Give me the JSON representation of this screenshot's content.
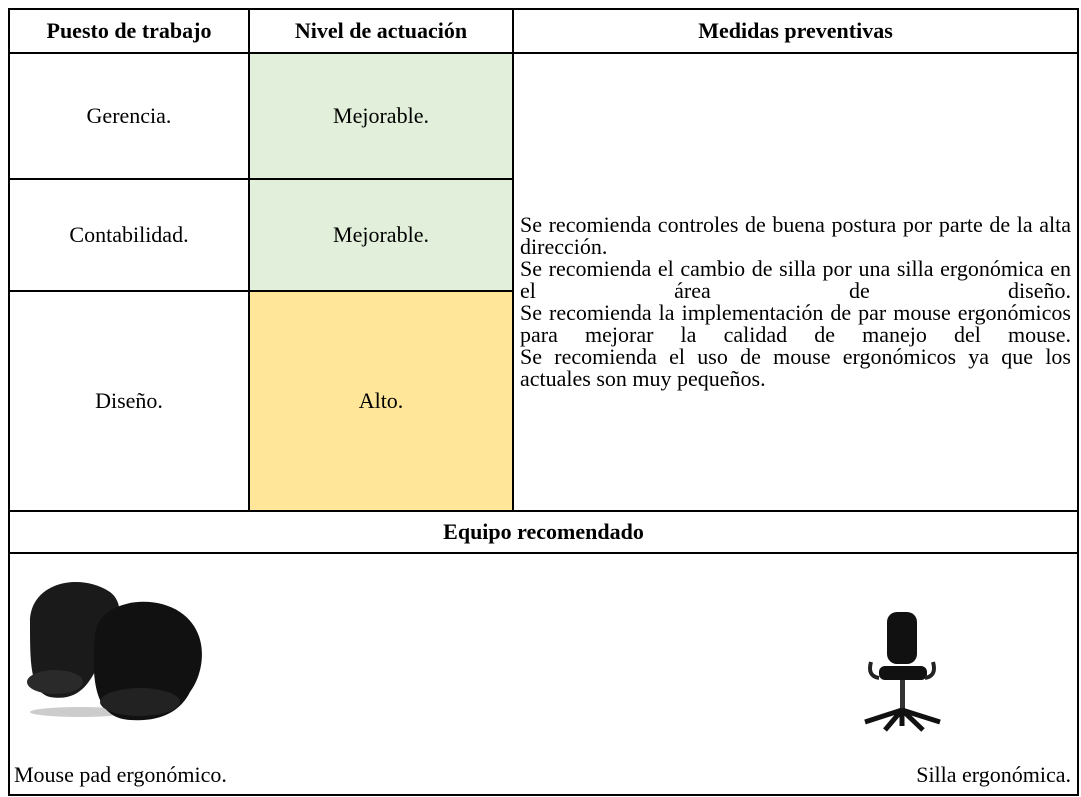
{
  "table": {
    "header": [
      "Puesto de trabajo",
      "Nivel de actuación",
      "Medidas preventivas"
    ],
    "rows": [
      [
        "Gerencia.",
        "Mejorable."
      ],
      [
        "Contabilidad.",
        "Mejorable."
      ],
      [
        "Diseño.",
        "Alto."
      ]
    ],
    "measures": [
      "Se recomienda controles de buena postura por parte de la alta dirección.",
      "Se recomienda el cambio de silla por una silla ergonómica en el área de diseño.",
      "Se recomienda la implementación de par mouse ergonómicos para mejorar la calidad de manejo del mouse.",
      "Se recomienda el uso de mouse ergonómicos ya que los actuales son muy pequeños."
    ]
  },
  "equipment": {
    "title": "Equipo recomendado",
    "items": [
      "Mouse pad ergonómico.",
      "Silla ergonómica."
    ]
  }
}
